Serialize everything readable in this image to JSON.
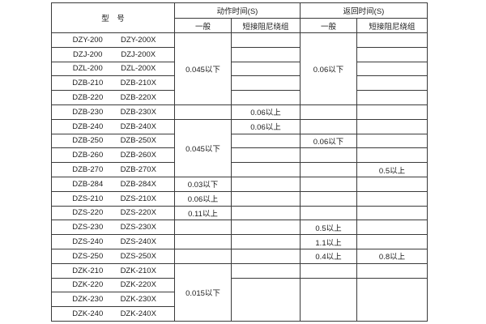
{
  "page": {
    "background": "#ffffff",
    "grid_color": "#3a3a3a",
    "text_color": "#1c1c1c"
  },
  "table": {
    "columns": {
      "model": "型　号",
      "action": {
        "title": "动作时间(S)",
        "general": "一般",
        "damping": "短接阻尼绕组"
      },
      "return": {
        "title": "返回时间(S)",
        "general": "一般",
        "damping": "短接阻尼绕组"
      }
    },
    "cell_order": [
      "action_general",
      "action_damping",
      "return_general",
      "return_damping"
    ],
    "rows": [
      {
        "model": [
          "DZY-200",
          "DZY-200X"
        ],
        "cells": [
          [
            "0.045以下",
            5
          ],
          [
            "",
            1
          ],
          [
            "0.06以下",
            5
          ],
          [
            "",
            1
          ]
        ]
      },
      {
        "model": [
          "DZJ-200",
          "DZJ-200X"
        ],
        "cells": [
          null,
          [
            "",
            1
          ],
          null,
          [
            "",
            1
          ]
        ]
      },
      {
        "model": [
          "DZL-200",
          "DZL-200X"
        ],
        "cells": [
          null,
          [
            "",
            1
          ],
          null,
          [
            "",
            1
          ]
        ]
      },
      {
        "model": [
          "DZB-210",
          "DZB-210X"
        ],
        "cells": [
          null,
          [
            "",
            1
          ],
          null,
          [
            "",
            1
          ]
        ]
      },
      {
        "model": [
          "DZB-220",
          "DZB-220X"
        ],
        "cells": [
          null,
          [
            "",
            1
          ],
          null,
          [
            "",
            1
          ]
        ]
      },
      {
        "model": [
          "DZB-230",
          "DZB-230X"
        ],
        "cells": [
          [
            "",
            1
          ],
          [
            "0.06以上",
            1
          ],
          [
            "",
            1
          ],
          [
            "",
            1
          ]
        ]
      },
      {
        "model": [
          "DZB-240",
          "DZB-240X"
        ],
        "cells": [
          [
            "0.045以下",
            4
          ],
          [
            "0.06以上",
            1
          ],
          [
            "",
            1
          ],
          [
            "",
            1
          ]
        ]
      },
      {
        "model": [
          "DZB-250",
          "DZB-250X"
        ],
        "cells": [
          null,
          [
            "",
            1
          ],
          [
            "0.06以下",
            1
          ],
          [
            "",
            1
          ]
        ]
      },
      {
        "model": [
          "DZB-260",
          "DZB-260X"
        ],
        "cells": [
          null,
          [
            "",
            1
          ],
          [
            "",
            1
          ],
          [
            "",
            1
          ]
        ]
      },
      {
        "model": [
          "DZB-270",
          "DZB-270X"
        ],
        "cells": [
          null,
          [
            "",
            1
          ],
          [
            "",
            1
          ],
          [
            "0.5以上",
            1
          ]
        ]
      },
      {
        "model": [
          "DZB-284",
          "DZB-284X"
        ],
        "cells": [
          [
            "0.03以下",
            1
          ],
          [
            "",
            1
          ],
          [
            "",
            1
          ],
          [
            "",
            1
          ]
        ]
      },
      {
        "model": [
          "DZS-210",
          "DZS-210X"
        ],
        "cells": [
          [
            "0.06以上",
            1
          ],
          [
            "",
            1
          ],
          [
            "",
            1
          ],
          [
            "",
            1
          ]
        ]
      },
      {
        "model": [
          "DZS-220",
          "DZS-220X"
        ],
        "cells": [
          [
            "0.11以上",
            1
          ],
          [
            "",
            1
          ],
          [
            "",
            1
          ],
          [
            "",
            1
          ]
        ]
      },
      {
        "model": [
          "DZS-230",
          "DZS-230X"
        ],
        "cells": [
          [
            "",
            1
          ],
          [
            "",
            1
          ],
          [
            "0.5以上",
            1
          ],
          [
            "",
            1
          ]
        ]
      },
      {
        "model": [
          "DZS-240",
          "DZS-240X"
        ],
        "cells": [
          [
            "",
            1
          ],
          [
            "",
            1
          ],
          [
            "1.1以上",
            1
          ],
          [
            "",
            1
          ]
        ]
      },
      {
        "model": [
          "DZS-250",
          "DZS-250X"
        ],
        "cells": [
          [
            "",
            1
          ],
          [
            "",
            1
          ],
          [
            "0.4以上",
            1
          ],
          [
            "0.8以上",
            1
          ]
        ]
      },
      {
        "model": [
          "DZK-210",
          "DZK-210X"
        ],
        "cells": [
          [
            "0.015以下",
            4
          ],
          [
            "",
            1
          ],
          [
            "",
            1
          ],
          [
            "",
            1
          ]
        ]
      },
      {
        "model": [
          "DZK-220",
          "DZK-220X"
        ],
        "cells": [
          null,
          [
            "",
            3
          ],
          [
            "",
            3
          ],
          [
            "",
            3
          ]
        ]
      },
      {
        "model": [
          "DZK-230",
          "DZK-230X"
        ],
        "cells": [
          null,
          null,
          null,
          null
        ]
      },
      {
        "model": [
          "DZK-240",
          "DZK-240X"
        ],
        "cells": [
          null,
          null,
          null,
          null
        ]
      }
    ]
  }
}
